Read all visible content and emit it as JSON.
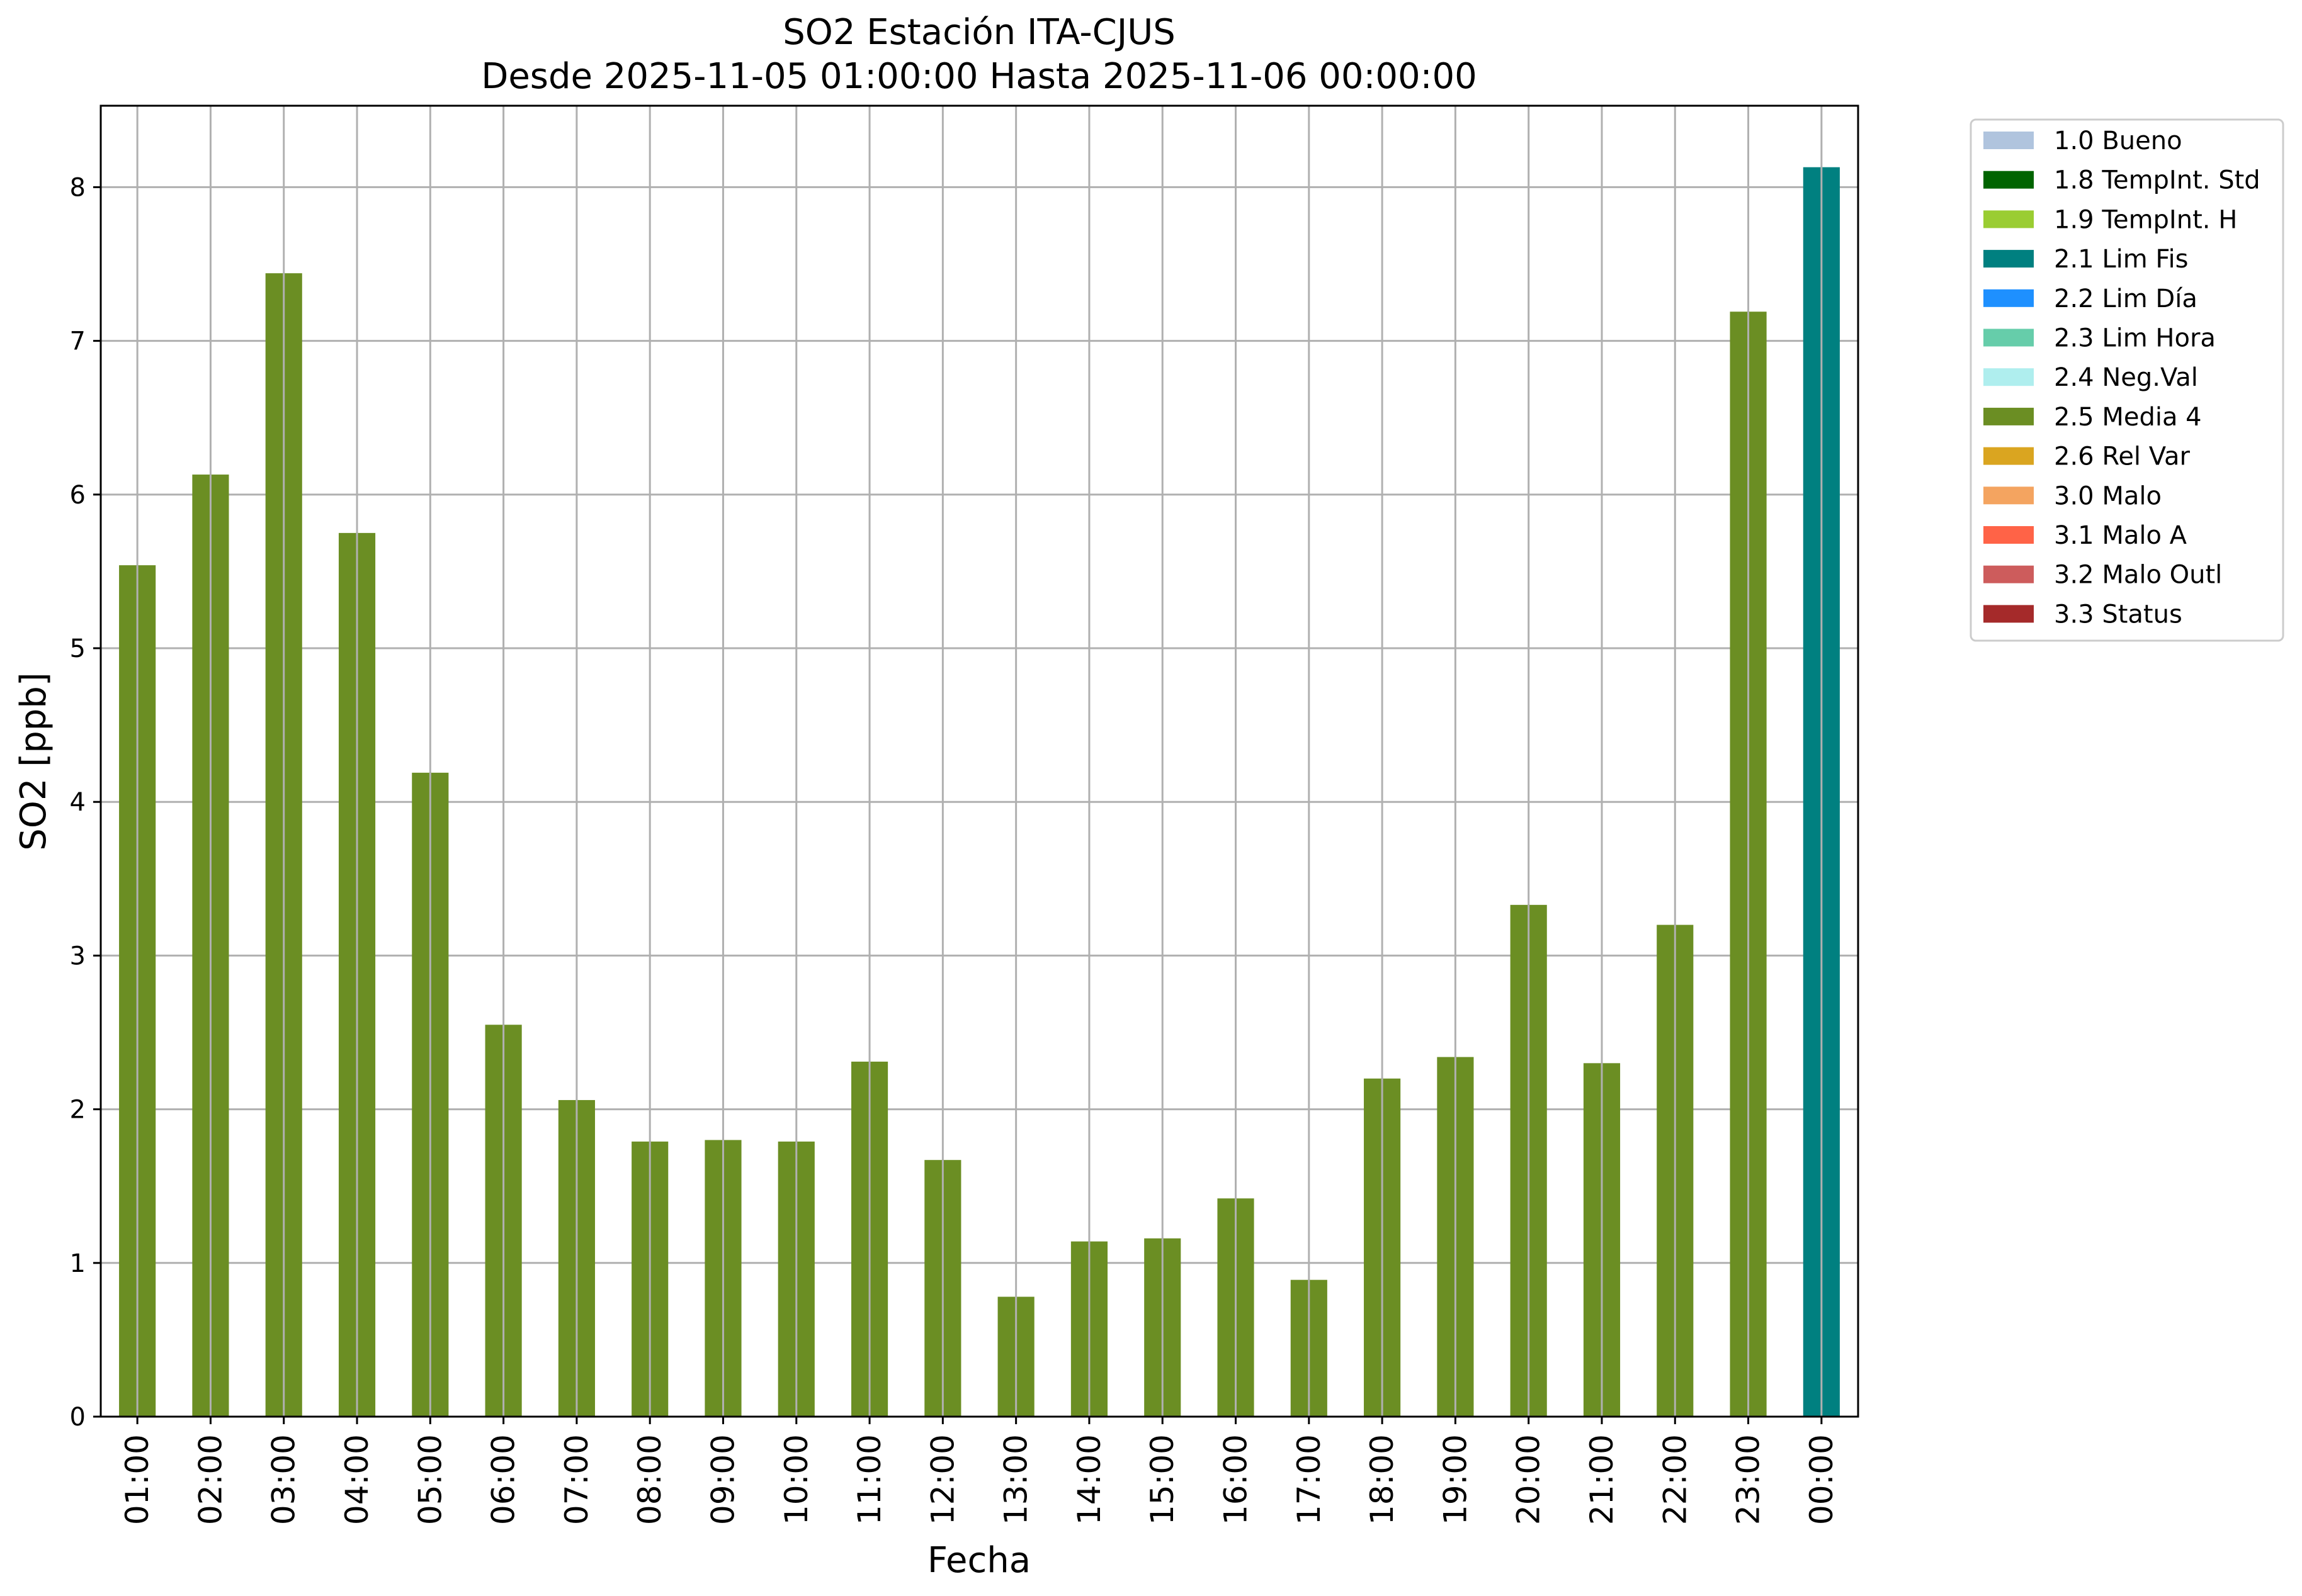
{
  "chart_data": {
    "type": "bar",
    "title": "SO2 Estación ITA-CJUS",
    "subtitle": "Desde 2025-11-05 01:00:00 Hasta 2025-11-06 00:00:00",
    "xlabel": "Fecha",
    "ylabel": "SO2 [ppb]",
    "ylim": [
      0,
      8.53
    ],
    "yticks": [
      0,
      1,
      2,
      3,
      4,
      5,
      6,
      7,
      8
    ],
    "grid": true,
    "legend_position": "outside-right",
    "categories": [
      "01:00",
      "02:00",
      "03:00",
      "04:00",
      "05:00",
      "06:00",
      "07:00",
      "08:00",
      "09:00",
      "10:00",
      "11:00",
      "12:00",
      "13:00",
      "14:00",
      "15:00",
      "16:00",
      "17:00",
      "18:00",
      "19:00",
      "20:00",
      "21:00",
      "22:00",
      "23:00",
      "00:00"
    ],
    "values": [
      5.54,
      6.13,
      7.44,
      5.75,
      4.19,
      2.55,
      2.06,
      1.79,
      1.8,
      1.79,
      2.31,
      1.67,
      0.78,
      1.14,
      1.16,
      1.42,
      0.89,
      2.2,
      2.34,
      3.33,
      2.3,
      3.2,
      7.19,
      8.13
    ],
    "flags": [
      "2.5 Media 4",
      "2.5 Media 4",
      "2.5 Media 4",
      "2.5 Media 4",
      "2.5 Media 4",
      "2.5 Media 4",
      "2.5 Media 4",
      "2.5 Media 4",
      "2.5 Media 4",
      "2.5 Media 4",
      "2.5 Media 4",
      "2.5 Media 4",
      "2.5 Media 4",
      "2.5 Media 4",
      "2.5 Media 4",
      "2.5 Media 4",
      "2.5 Media 4",
      "2.5 Media 4",
      "2.5 Media 4",
      "2.5 Media 4",
      "2.5 Media 4",
      "2.5 Media 4",
      "2.5 Media 4",
      "2.1 Lim Fis"
    ],
    "legend": [
      {
        "label": "1.0 Bueno",
        "color": "#b0c4de"
      },
      {
        "label": "1.8 TempInt. Std",
        "color": "#006400"
      },
      {
        "label": "1.9 TempInt. H",
        "color": "#9acd32"
      },
      {
        "label": "2.1 Lim Fis",
        "color": "#008080"
      },
      {
        "label": "2.2 Lim Día",
        "color": "#1e90ff"
      },
      {
        "label": "2.3 Lim Hora",
        "color": "#66cdaa"
      },
      {
        "label": "2.4 Neg.Val",
        "color": "#afeeee"
      },
      {
        "label": "2.5 Media 4",
        "color": "#6b8e23"
      },
      {
        "label": "2.6 Rel Var",
        "color": "#daa520"
      },
      {
        "label": "3.0 Malo",
        "color": "#f4a460"
      },
      {
        "label": "3.1 Malo A",
        "color": "#ff6347"
      },
      {
        "label": "3.2 Malo Outl",
        "color": "#cd5c5c"
      },
      {
        "label": "3.3 Status",
        "color": "#a52a2a"
      }
    ]
  }
}
